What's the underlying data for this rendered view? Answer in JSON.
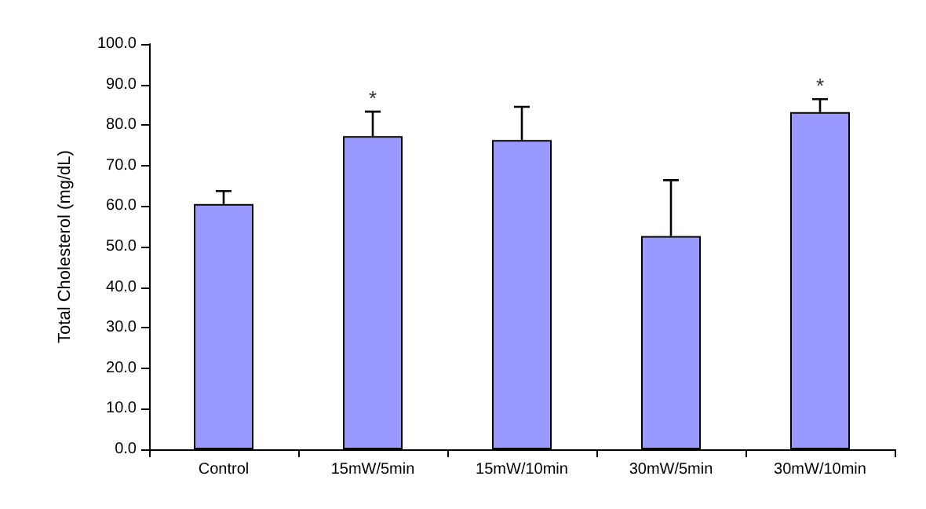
{
  "chart_data": {
    "type": "bar",
    "ylabel": "Total Cholesterol (mg/dL)",
    "categories": [
      "Control",
      "15mW/5min",
      "15mW/10min",
      "30mW/5min",
      "30mW/10min"
    ],
    "values": [
      60.5,
      77.3,
      76.3,
      52.6,
      83.2
    ],
    "errors": [
      [
        60.5,
        63.7
      ],
      [
        77.3,
        83.3
      ],
      [
        76.3,
        84.5
      ],
      [
        52.6,
        66.4
      ],
      [
        83.2,
        86.4
      ]
    ],
    "color": "#9999ff",
    "ylim": [
      0,
      100
    ],
    "yticks": [
      {
        "value": 0,
        "label": "0.0"
      },
      {
        "value": 10,
        "label": "10.0"
      },
      {
        "value": 20,
        "label": "20.0"
      },
      {
        "value": 30,
        "label": "30.0"
      },
      {
        "value": 40,
        "label": "40.0"
      },
      {
        "value": 50,
        "label": "50.0"
      },
      {
        "value": 60,
        "label": "60.0"
      },
      {
        "value": 70,
        "label": "70.0"
      },
      {
        "value": 80,
        "label": "80.0"
      },
      {
        "value": 90,
        "label": "90.0"
      },
      {
        "value": 100,
        "label": "100.0"
      }
    ],
    "annotations": [
      {
        "text": "*",
        "x": "15mW/5min",
        "y": 83.3
      },
      {
        "text": "*",
        "x": "30mW/10min",
        "y": 86.4
      }
    ],
    "grid": false
  }
}
